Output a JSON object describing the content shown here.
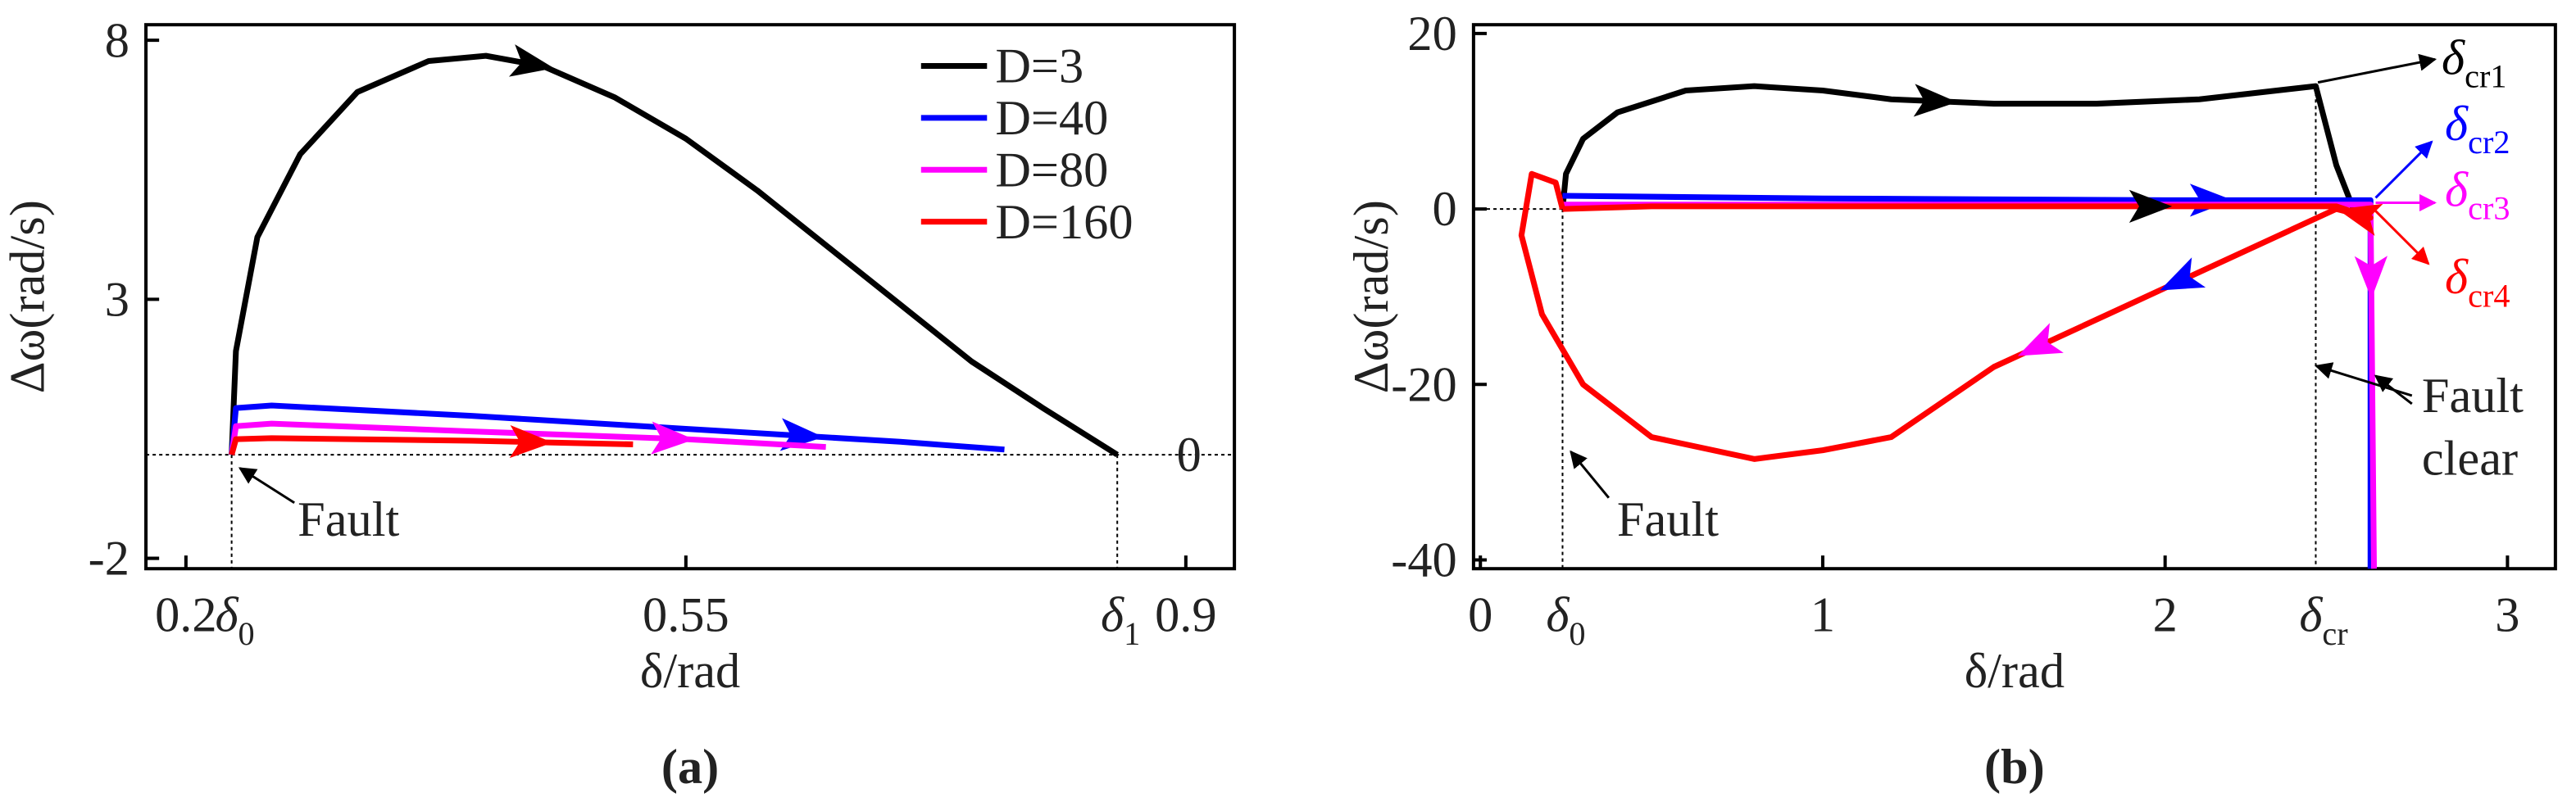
{
  "chart_data": [
    {
      "type": "line",
      "caption": "(a)",
      "x_label": "δ/rad",
      "y_label": "Δω(rad/s)",
      "xlim": [
        0.172,
        0.934
      ],
      "ylim": [
        -2.2,
        8.3
      ],
      "xticks": [
        0.2,
        0.55,
        0.9
      ],
      "yticks": [
        -2,
        3,
        8
      ],
      "y_ref": 0,
      "x_markers": [
        {
          "value": 0.232,
          "label": {
            "text": "δ",
            "sub": "0"
          }
        },
        {
          "value": 0.852,
          "label": {
            "text": "δ",
            "sub": "1"
          }
        }
      ],
      "legend": "upper right",
      "series": [
        {
          "name": "D=3",
          "color": "#000000",
          "x": [
            0.232,
            0.235,
            0.25,
            0.28,
            0.32,
            0.37,
            0.41,
            0.45,
            0.5,
            0.55,
            0.6,
            0.65,
            0.7,
            0.75,
            0.8,
            0.852
          ],
          "values": [
            0,
            2,
            4.2,
            5.8,
            7.0,
            7.6,
            7.7,
            7.5,
            6.9,
            6.1,
            5.1,
            4.0,
            2.9,
            1.8,
            0.9,
            0
          ]
        },
        {
          "name": "D=40",
          "color": "#0000ff",
          "x": [
            0.232,
            0.235,
            0.26,
            0.4,
            0.55,
            0.7,
            0.773
          ],
          "values": [
            0,
            0.9,
            0.95,
            0.75,
            0.5,
            0.25,
            0.1
          ]
        },
        {
          "name": "D=80",
          "color": "#ff00ff",
          "x": [
            0.232,
            0.235,
            0.26,
            0.4,
            0.55,
            0.648
          ],
          "values": [
            0,
            0.55,
            0.6,
            0.45,
            0.3,
            0.15
          ]
        },
        {
          "name": "D=160",
          "color": "#ff0000",
          "x": [
            0.232,
            0.235,
            0.26,
            0.4,
            0.513
          ],
          "values": [
            0,
            0.3,
            0.32,
            0.27,
            0.2
          ]
        }
      ],
      "annotations": [
        {
          "text": "Fault"
        }
      ]
    },
    {
      "type": "line",
      "caption": "(b)",
      "x_label": "δ/rad",
      "y_label": "Δω(rad/s)",
      "xlim": [
        -0.02,
        3.14
      ],
      "ylim": [
        -41,
        21
      ],
      "xticks": [
        0,
        1,
        2,
        3
      ],
      "yticks": [
        -40,
        -20,
        0,
        20
      ],
      "x_markers": [
        {
          "value": 0.24,
          "label": {
            "text": "δ",
            "sub": "0"
          }
        },
        {
          "value": 2.44,
          "label": {
            "text": "δ",
            "sub": "cr"
          }
        }
      ],
      "series": [
        {
          "color": "#000000",
          "x": [
            0.24,
            0.25,
            0.3,
            0.4,
            0.6,
            0.8,
            1.0,
            1.2,
            1.5,
            1.8,
            2.1,
            2.44,
            2.5,
            2.55,
            2.58,
            2.6
          ],
          "values": [
            0,
            4,
            8,
            11,
            13.5,
            14,
            13.5,
            12.5,
            12,
            12,
            12.5,
            14,
            5,
            0,
            -1,
            0
          ]
        },
        {
          "color": "#0000ff",
          "x": [
            0.24,
            1.0,
            2.0,
            2.6,
            2.6
          ],
          "values": [
            1.5,
            1.2,
            1.0,
            1.0,
            -41
          ]
        },
        {
          "color": "#ff00ff",
          "x": [
            0.24,
            1.5,
            2.6,
            2.61
          ],
          "values": [
            0.5,
            0.5,
            0.5,
            -41
          ]
        },
        {
          "color": "#ff0000",
          "x": [
            0.24,
            0.5,
            1.5,
            2.5,
            2.6,
            2.5,
            2.0,
            1.5,
            1.2,
            1.0,
            0.8,
            0.5,
            0.3,
            0.18,
            0.12,
            0.15,
            0.22,
            0.24
          ],
          "values": [
            0,
            0.3,
            0.3,
            0.3,
            -1,
            0,
            -9,
            -18,
            -26,
            -27.5,
            -28.5,
            -26,
            -20,
            -12,
            -3,
            4,
            3,
            0
          ]
        }
      ],
      "annotations": [
        {
          "text": "Fault"
        },
        {
          "lines": [
            "Fault",
            "clear"
          ]
        },
        {
          "text": "δ",
          "sub": "cr1",
          "color": "#000000"
        },
        {
          "text": "δ",
          "sub": "cr2",
          "color": "#0000ff"
        },
        {
          "text": "δ",
          "sub": "cr3",
          "color": "#ff00ff"
        },
        {
          "text": "δ",
          "sub": "cr4",
          "color": "#ff0000"
        }
      ]
    }
  ]
}
